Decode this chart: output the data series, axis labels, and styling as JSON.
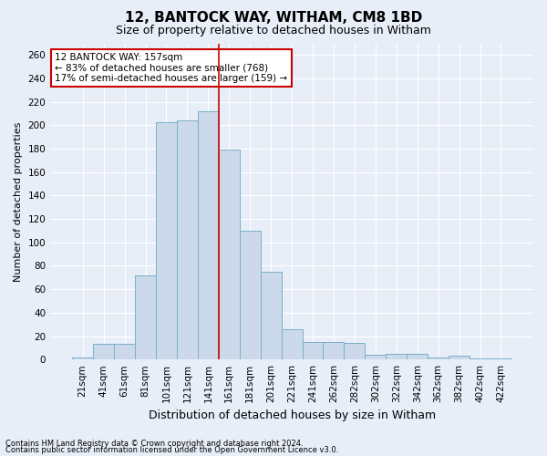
{
  "title1": "12, BANTOCK WAY, WITHAM, CM8 1BD",
  "title2": "Size of property relative to detached houses in Witham",
  "xlabel": "Distribution of detached houses by size in Witham",
  "ylabel": "Number of detached properties",
  "categories": [
    "21sqm",
    "41sqm",
    "61sqm",
    "81sqm",
    "101sqm",
    "121sqm",
    "141sqm",
    "161sqm",
    "181sqm",
    "201sqm",
    "221sqm",
    "241sqm",
    "262sqm",
    "282sqm",
    "302sqm",
    "322sqm",
    "342sqm",
    "362sqm",
    "382sqm",
    "402sqm",
    "422sqm"
  ],
  "values": [
    2,
    13,
    13,
    72,
    203,
    204,
    212,
    179,
    110,
    75,
    26,
    15,
    15,
    14,
    4,
    5,
    5,
    2,
    3,
    1,
    1
  ],
  "bar_color": "#ccd9ea",
  "bar_edge_color": "#7aafc8",
  "vline_color": "#cc0000",
  "vline_pos": 6.5,
  "annotation_text": "12 BANTOCK WAY: 157sqm\n← 83% of detached houses are smaller (768)\n17% of semi-detached houses are larger (159) →",
  "annotation_box_color": "white",
  "annotation_box_edge": "#cc0000",
  "ylim": [
    0,
    270
  ],
  "yticks": [
    0,
    20,
    40,
    60,
    80,
    100,
    120,
    140,
    160,
    180,
    200,
    220,
    240,
    260
  ],
  "footnote1": "Contains HM Land Registry data © Crown copyright and database right 2024.",
  "footnote2": "Contains public sector information licensed under the Open Government Licence v3.0.",
  "background_color": "#e8eef8",
  "grid_color": "#ffffff",
  "title1_fontsize": 11,
  "title2_fontsize": 9,
  "xlabel_fontsize": 9,
  "ylabel_fontsize": 8,
  "tick_fontsize": 7.5,
  "annotation_fontsize": 7.5,
  "footnote_fontsize": 6
}
